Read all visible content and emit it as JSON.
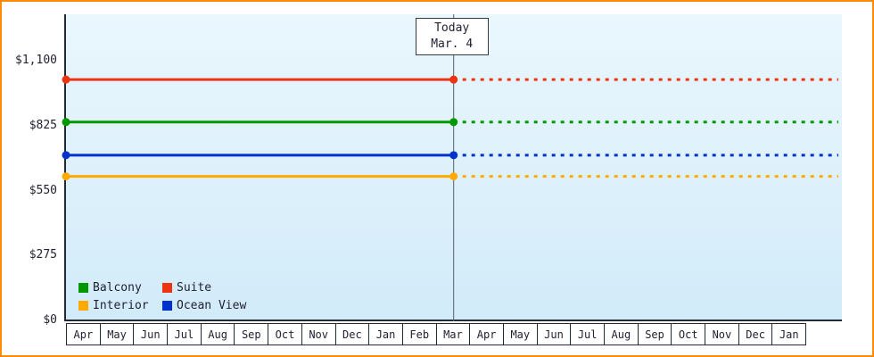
{
  "frame": {
    "border_color": "#ff8c00",
    "background": "#ffffff"
  },
  "today": {
    "line1": "Today",
    "line2": "Mar. 4"
  },
  "chart_data": {
    "type": "line",
    "title": "",
    "xlabel": "",
    "ylabel": "",
    "ylim": [
      0,
      1100
    ],
    "ytick_values": [
      0,
      275,
      550,
      825,
      1100
    ],
    "ytick_labels": [
      "$0",
      "$275",
      "$550",
      "$825",
      "$1,100"
    ],
    "x_months": [
      "Apr",
      "May",
      "Jun",
      "Jul",
      "Aug",
      "Sep",
      "Oct",
      "Nov",
      "Dec",
      "Jan",
      "Feb",
      "Mar",
      "Apr",
      "May",
      "Jun",
      "Jul",
      "Aug",
      "Sep",
      "Oct",
      "Nov",
      "Dec",
      "Jan"
    ],
    "today_month_index": 11,
    "today_day": 4,
    "days_in_month": 31,
    "grid": false,
    "legend_position": "bottom-left",
    "line_style": {
      "before_today": "solid",
      "after_today": "dashed"
    },
    "series": [
      {
        "name": "Suite",
        "color": "#ee3311",
        "value": 1020
      },
      {
        "name": "Balcony",
        "color": "#009900",
        "value": 840
      },
      {
        "name": "Ocean View",
        "color": "#0033cc",
        "value": 700
      },
      {
        "name": "Interior",
        "color": "#ffaa00",
        "value": 610
      }
    ],
    "legend_rows": [
      [
        "Balcony",
        "Suite"
      ],
      [
        "Interior",
        "Ocean View"
      ]
    ]
  }
}
